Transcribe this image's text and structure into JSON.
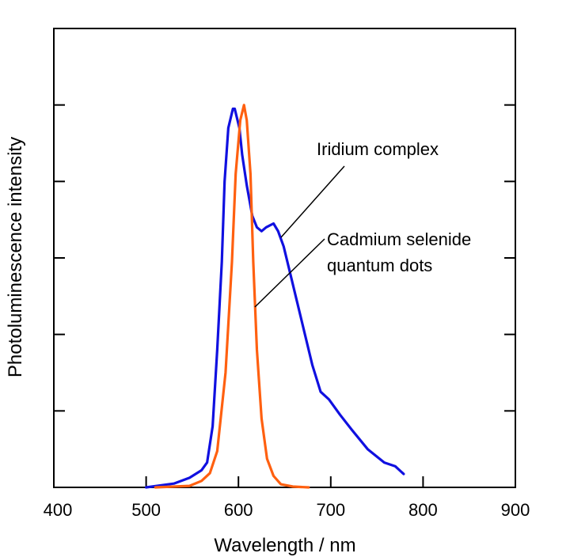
{
  "chart_data": {
    "type": "line",
    "title": "",
    "xlabel": "Wavelength / nm",
    "ylabel": "Photoluminescence intensity",
    "xlim": [
      400,
      900
    ],
    "ylim": [
      0,
      1.2
    ],
    "x_ticks": [
      "400",
      "500",
      "600",
      "700",
      "800",
      "900"
    ],
    "y_ticks_unlabeled": [
      0,
      0.2,
      0.4,
      0.6,
      0.8,
      1.0
    ],
    "grid": false,
    "legend": "none (direct annotation labels with leader lines)",
    "series": [
      {
        "name": "Iridium complex",
        "color": "#1010e0",
        "points": [
          [
            500,
            0
          ],
          [
            530,
            0.01
          ],
          [
            547,
            0.025
          ],
          [
            560,
            0.045
          ],
          [
            566,
            0.065
          ],
          [
            572,
            0.16
          ],
          [
            577,
            0.36
          ],
          [
            582,
            0.59
          ],
          [
            585,
            0.8
          ],
          [
            589,
            0.94
          ],
          [
            594,
            0.99
          ],
          [
            596,
            0.99
          ],
          [
            601,
            0.94
          ],
          [
            604,
            0.87
          ],
          [
            609,
            0.79
          ],
          [
            615,
            0.71
          ],
          [
            620,
            0.68
          ],
          [
            625,
            0.67
          ],
          [
            630,
            0.68
          ],
          [
            638,
            0.69
          ],
          [
            643,
            0.67
          ],
          [
            649,
            0.63
          ],
          [
            656,
            0.56
          ],
          [
            663,
            0.49
          ],
          [
            672,
            0.4
          ],
          [
            680,
            0.32
          ],
          [
            689,
            0.25
          ],
          [
            698,
            0.23
          ],
          [
            710,
            0.19
          ],
          [
            723,
            0.15
          ],
          [
            740,
            0.1
          ],
          [
            758,
            0.065
          ],
          [
            770,
            0.055
          ],
          [
            779,
            0.035
          ]
        ]
      },
      {
        "name": "Cadmium selenide quantum dots",
        "color": "#ff6010",
        "points": [
          [
            510,
            0
          ],
          [
            547,
            0.004
          ],
          [
            560,
            0.017
          ],
          [
            569,
            0.037
          ],
          [
            577,
            0.095
          ],
          [
            586,
            0.3
          ],
          [
            593,
            0.59
          ],
          [
            597,
            0.82
          ],
          [
            602,
            0.96
          ],
          [
            606,
            1.0
          ],
          [
            609,
            0.96
          ],
          [
            613,
            0.82
          ],
          [
            616,
            0.59
          ],
          [
            620,
            0.36
          ],
          [
            625,
            0.18
          ],
          [
            631,
            0.075
          ],
          [
            638,
            0.03
          ],
          [
            646,
            0.008
          ],
          [
            659,
            0.002
          ],
          [
            676,
            0
          ]
        ]
      }
    ],
    "annotations": {
      "iridium": "Iridium complex",
      "cadmium_line1": "Cadmium selenide",
      "cadmium_line2": "quantum dots"
    }
  }
}
